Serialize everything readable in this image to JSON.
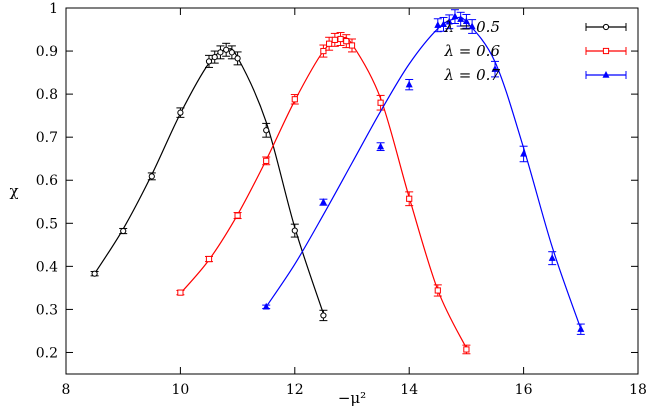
{
  "chart_data": {
    "type": "scatter",
    "xlabel": "−μ²",
    "ylabel": "χ",
    "xlim": [
      8,
      18
    ],
    "ylim": [
      0.15,
      1.0
    ],
    "xticks": [
      8,
      10,
      12,
      14,
      16,
      18
    ],
    "yticks": [
      0.2,
      0.3,
      0.4,
      0.5,
      0.6,
      0.7,
      0.8,
      0.9,
      1.0
    ],
    "xtick_labels": [
      "8",
      "10",
      "12",
      "14",
      "16",
      "18"
    ],
    "ytick_labels": [
      "0.2",
      "0.3",
      "0.4",
      "0.5",
      "0.6",
      "0.7",
      "0.8",
      "0.9",
      "1"
    ],
    "legend_position": "top-right",
    "series": [
      {
        "name": "λ = 0.5",
        "color": "#000000",
        "marker": "circle",
        "points": [
          {
            "x": 8.5,
            "y": 0.383,
            "err": 0.005
          },
          {
            "x": 9.0,
            "y": 0.482,
            "err": 0.006
          },
          {
            "x": 9.5,
            "y": 0.609,
            "err": 0.008
          },
          {
            "x": 10.0,
            "y": 0.757,
            "err": 0.011
          },
          {
            "x": 10.5,
            "y": 0.876,
            "err": 0.014
          },
          {
            "x": 10.6,
            "y": 0.886,
            "err": 0.014
          },
          {
            "x": 10.7,
            "y": 0.897,
            "err": 0.015
          },
          {
            "x": 10.8,
            "y": 0.903,
            "err": 0.015
          },
          {
            "x": 10.9,
            "y": 0.897,
            "err": 0.015
          },
          {
            "x": 11.0,
            "y": 0.883,
            "err": 0.015
          },
          {
            "x": 11.5,
            "y": 0.716,
            "err": 0.016
          },
          {
            "x": 12.0,
            "y": 0.483,
            "err": 0.015
          },
          {
            "x": 12.5,
            "y": 0.286,
            "err": 0.012
          }
        ],
        "curve": [
          [
            8.5,
            0.383
          ],
          [
            9.0,
            0.487
          ],
          [
            9.5,
            0.613
          ],
          [
            10.0,
            0.755
          ],
          [
            10.5,
            0.872
          ],
          [
            10.8,
            0.903
          ],
          [
            11.0,
            0.885
          ],
          [
            11.5,
            0.735
          ],
          [
            12.0,
            0.49
          ],
          [
            12.5,
            0.29
          ]
        ]
      },
      {
        "name": "λ = 0.6",
        "color": "#ff0000",
        "marker": "square",
        "points": [
          {
            "x": 10.0,
            "y": 0.339,
            "err": 0.005
          },
          {
            "x": 10.5,
            "y": 0.417,
            "err": 0.006
          },
          {
            "x": 11.0,
            "y": 0.518,
            "err": 0.007
          },
          {
            "x": 11.5,
            "y": 0.645,
            "err": 0.009
          },
          {
            "x": 12.0,
            "y": 0.788,
            "err": 0.011
          },
          {
            "x": 12.5,
            "y": 0.9,
            "err": 0.014
          },
          {
            "x": 12.6,
            "y": 0.917,
            "err": 0.015
          },
          {
            "x": 12.7,
            "y": 0.926,
            "err": 0.015
          },
          {
            "x": 12.8,
            "y": 0.928,
            "err": 0.015
          },
          {
            "x": 12.9,
            "y": 0.923,
            "err": 0.015
          },
          {
            "x": 13.0,
            "y": 0.913,
            "err": 0.015
          },
          {
            "x": 13.5,
            "y": 0.78,
            "err": 0.017
          },
          {
            "x": 14.0,
            "y": 0.557,
            "err": 0.016
          },
          {
            "x": 14.5,
            "y": 0.344,
            "err": 0.013
          },
          {
            "x": 15.0,
            "y": 0.207,
            "err": 0.01
          }
        ],
        "curve": [
          [
            10.0,
            0.337
          ],
          [
            10.5,
            0.415
          ],
          [
            11.0,
            0.52
          ],
          [
            11.5,
            0.647
          ],
          [
            12.0,
            0.785
          ],
          [
            12.5,
            0.9
          ],
          [
            12.8,
            0.928
          ],
          [
            13.0,
            0.916
          ],
          [
            13.5,
            0.79
          ],
          [
            14.0,
            0.56
          ],
          [
            14.5,
            0.345
          ],
          [
            15.0,
            0.21
          ]
        ]
      },
      {
        "name": "λ = 0.7",
        "color": "#0000ff",
        "marker": "triangle",
        "points": [
          {
            "x": 11.5,
            "y": 0.306,
            "err": 0.004
          },
          {
            "x": 12.5,
            "y": 0.549,
            "err": 0.007
          },
          {
            "x": 13.5,
            "y": 0.678,
            "err": 0.009
          },
          {
            "x": 14.0,
            "y": 0.822,
            "err": 0.012
          },
          {
            "x": 14.5,
            "y": 0.96,
            "err": 0.015
          },
          {
            "x": 14.6,
            "y": 0.962,
            "err": 0.016
          },
          {
            "x": 14.7,
            "y": 0.968,
            "err": 0.016
          },
          {
            "x": 14.8,
            "y": 0.98,
            "err": 0.016
          },
          {
            "x": 14.9,
            "y": 0.974,
            "err": 0.016
          },
          {
            "x": 15.0,
            "y": 0.969,
            "err": 0.016
          },
          {
            "x": 15.1,
            "y": 0.957,
            "err": 0.016
          },
          {
            "x": 15.5,
            "y": 0.858,
            "err": 0.018
          },
          {
            "x": 16.0,
            "y": 0.661,
            "err": 0.018
          },
          {
            "x": 16.5,
            "y": 0.419,
            "err": 0.015
          },
          {
            "x": 17.0,
            "y": 0.254,
            "err": 0.012
          }
        ],
        "curve": [
          [
            11.5,
            0.306
          ],
          [
            12.0,
            0.405
          ],
          [
            12.5,
            0.52
          ],
          [
            13.0,
            0.64
          ],
          [
            13.5,
            0.76
          ],
          [
            14.0,
            0.87
          ],
          [
            14.5,
            0.952
          ],
          [
            14.8,
            0.975
          ],
          [
            15.0,
            0.968
          ],
          [
            15.5,
            0.875
          ],
          [
            16.0,
            0.675
          ],
          [
            16.5,
            0.445
          ],
          [
            17.0,
            0.255
          ]
        ]
      }
    ]
  }
}
